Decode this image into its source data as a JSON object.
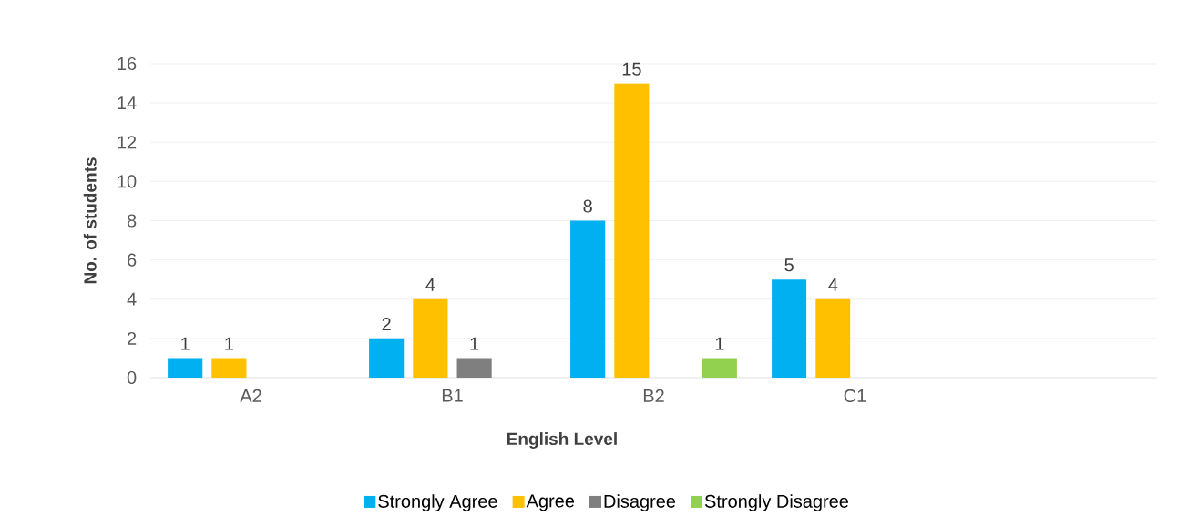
{
  "chart_data": {
    "type": "bar",
    "xlabel": "English Level",
    "ylabel": "No. of students",
    "categories": [
      "A2",
      "B1",
      "B2",
      "C1",
      null
    ],
    "series": [
      {
        "name": "Strongly Agree",
        "color": "#00b0f0",
        "values": [
          1,
          2,
          8,
          5,
          null
        ]
      },
      {
        "name": "Agree",
        "color": "#ffc000",
        "values": [
          1,
          4,
          15,
          4,
          null
        ]
      },
      {
        "name": "Disagree",
        "color": "#7f7f7f",
        "values": [
          null,
          1,
          null,
          null,
          null
        ]
      },
      {
        "name": "Strongly Disagree",
        "color": "#92d050",
        "values": [
          null,
          null,
          1,
          null,
          null
        ]
      }
    ],
    "ylim": [
      0,
      16
    ],
    "yticks": [
      0,
      2,
      4,
      6,
      8,
      10,
      12,
      14,
      16
    ],
    "grid": "y",
    "legend": "bottom",
    "data_labels": true
  }
}
